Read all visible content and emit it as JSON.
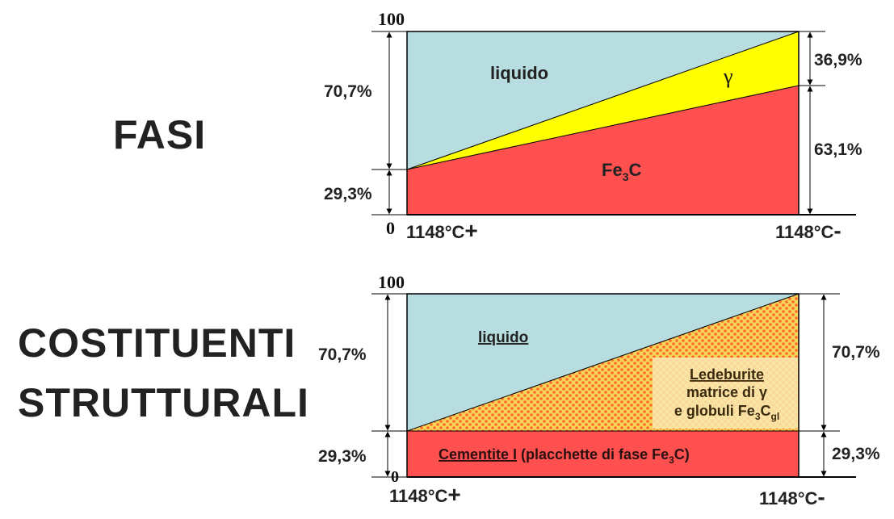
{
  "titles": {
    "fasi": "FASI",
    "costituenti_line1": "COSTITUENTI",
    "costituenti_line2": "STRUTTURALI"
  },
  "fasi_diagram": {
    "y_top": "100",
    "y_bottom": "0",
    "x_left": "1148°C",
    "x_left_sign": "+",
    "x_right": "1148°C",
    "x_right_sign": "-",
    "left_upper_pct": "70,7%",
    "left_lower_pct": "29,3%",
    "right_upper_pct": "36,9%",
    "right_lower_pct": "63,1%",
    "region_liquid": "liquido",
    "region_gamma": "γ",
    "region_fe3c_main": "Fe",
    "region_fe3c_sub": "3",
    "region_fe3c_end": "C",
    "colors": {
      "liquid": "#b8dde0",
      "gamma": "#ffff00",
      "fe3c": "#ff5050"
    }
  },
  "costituenti_diagram": {
    "y_top": "100",
    "y_bottom": "0",
    "x_left": "1148°C",
    "x_left_sign": "+",
    "x_right": "1148°C",
    "x_right_sign": "-",
    "left_upper_pct": "70,7%",
    "left_lower_pct": "29,3%",
    "right_upper_pct": "70,7%",
    "right_lower_pct": "29,3%",
    "region_liquid": "liquido",
    "ledeburite_title": "Ledeburite",
    "ledeburite_line2": "matrice di γ",
    "ledeburite_line3_main": "e globuli Fe",
    "ledeburite_line3_sub": "3",
    "ledeburite_line3_c": "C",
    "ledeburite_line3_sub2": "gl",
    "cementite_underlined": "Cementite I",
    "cementite_rest": " (placchette di fase Fe",
    "cementite_sub": "3",
    "cementite_end": "C)",
    "colors": {
      "liquid": "#b8dde0",
      "ledeburite_bg": "#f7d55a",
      "ledeburite_dots": "#ff6a2a",
      "cementite": "#ff5050"
    }
  }
}
